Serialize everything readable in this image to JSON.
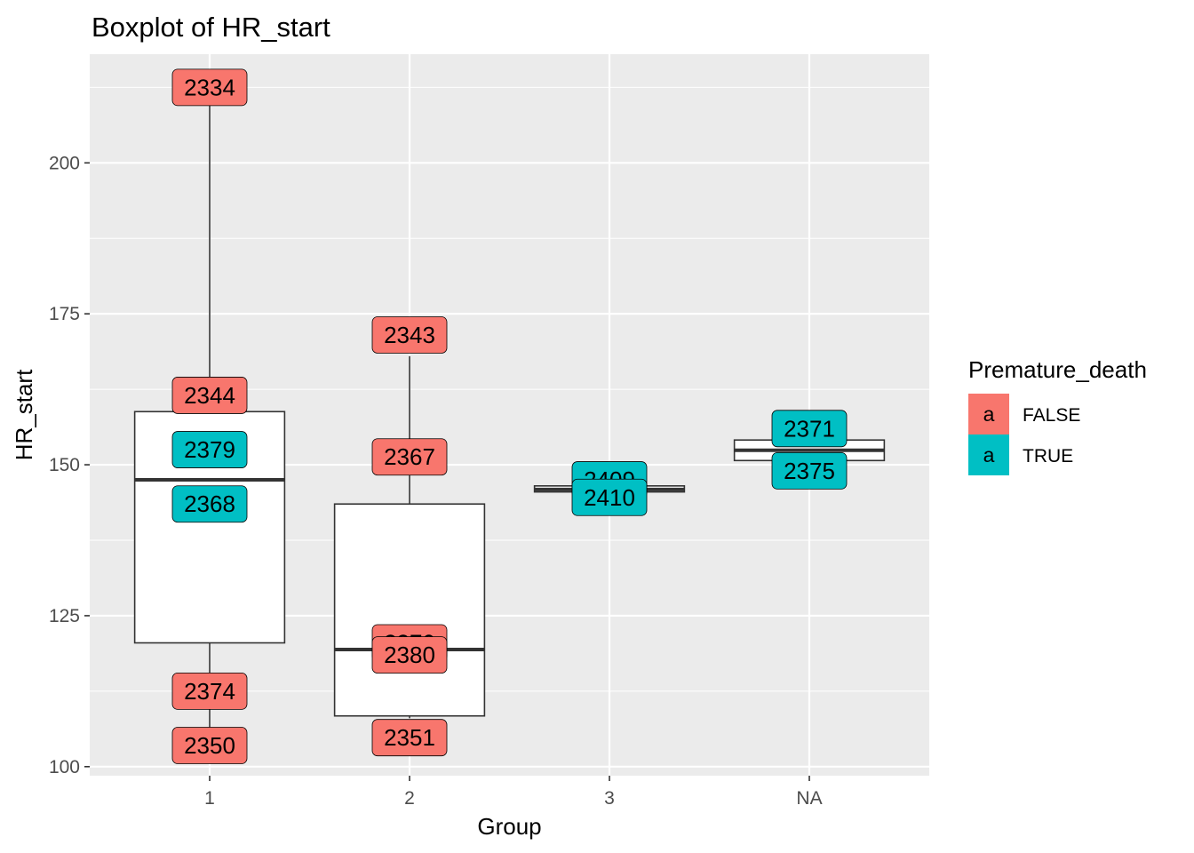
{
  "chart_data": {
    "type": "boxplot",
    "title": "Boxplot of  HR_start",
    "xlabel": "Group",
    "ylabel": "HR_start",
    "categories": [
      "1",
      "2",
      "3",
      "NA"
    ],
    "ylim": [
      98.5,
      218
    ],
    "y_ticks": [
      100,
      125,
      150,
      175,
      200
    ],
    "grid": true,
    "boxes": [
      {
        "category": "1",
        "whisker_low": 100.5,
        "q1": 120.5,
        "median": 147.5,
        "q3": 158.8,
        "whisker_high": 210.5
      },
      {
        "category": "2",
        "whisker_low": 108.0,
        "q1": 108.4,
        "median": 119.4,
        "q3": 143.5,
        "whisker_high": 168.0
      },
      {
        "category": "3",
        "whisker_low": 145.5,
        "q1": 145.5,
        "median": 145.9,
        "q3": 146.5,
        "whisker_high": 146.5
      },
      {
        "category": "NA",
        "whisker_low": 150.7,
        "q1": 150.7,
        "median": 152.4,
        "q3": 154.1,
        "whisker_high": 154.1
      }
    ],
    "labels": [
      {
        "category": "1",
        "y": 212.5,
        "text": "2334",
        "premature_death": "FALSE"
      },
      {
        "category": "1",
        "y": 161.5,
        "text": "2344",
        "premature_death": "FALSE"
      },
      {
        "category": "1",
        "y": 152.5,
        "text": "2379",
        "premature_death": "TRUE"
      },
      {
        "category": "1",
        "y": 143.5,
        "text": "2368",
        "premature_death": "TRUE"
      },
      {
        "category": "1",
        "y": 112.5,
        "text": "2374",
        "premature_death": "FALSE"
      },
      {
        "category": "1",
        "y": 103.5,
        "text": "2350",
        "premature_death": "FALSE"
      },
      {
        "category": "2",
        "y": 171.5,
        "text": "2343",
        "premature_death": "FALSE"
      },
      {
        "category": "2",
        "y": 151.3,
        "text": "2367",
        "premature_death": "FALSE"
      },
      {
        "category": "2",
        "y": 120.5,
        "text": "2370",
        "premature_death": "FALSE"
      },
      {
        "category": "2",
        "y": 118.5,
        "text": "2380",
        "premature_death": "FALSE"
      },
      {
        "category": "2",
        "y": 104.8,
        "text": "2351",
        "premature_death": "FALSE"
      },
      {
        "category": "3",
        "y": 147.5,
        "text": "2409",
        "premature_death": "TRUE"
      },
      {
        "category": "3",
        "y": 144.6,
        "text": "2410",
        "premature_death": "TRUE"
      },
      {
        "category": "NA",
        "y": 156.0,
        "text": "2371",
        "premature_death": "TRUE"
      },
      {
        "category": "NA",
        "y": 149.0,
        "text": "2375",
        "premature_death": "TRUE"
      }
    ],
    "legend": {
      "title": "Premature_death",
      "key_glyph": "a",
      "placement": "right",
      "entries": [
        {
          "label": "FALSE",
          "color": "#F8766D"
        },
        {
          "label": "TRUE",
          "color": "#00BFC4"
        }
      ]
    },
    "colors": {
      "panel": "#EBEBEB",
      "grid": "#FFFFFF",
      "box_fill": "#FFFFFF",
      "box_line": "#333333"
    }
  }
}
